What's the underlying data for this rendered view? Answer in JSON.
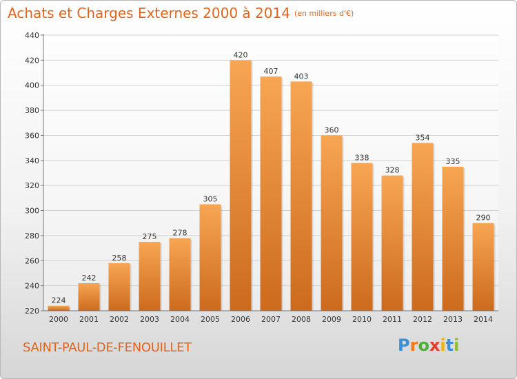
{
  "title": "Achats et Charges Externes 2000 à 2014",
  "unit": "(en milliers d'€)",
  "town": "SAINT-PAUL-DE-FENOUILLET",
  "logo": {
    "text": "Proxiti",
    "letters": [
      "P",
      "r",
      "o",
      "x",
      "i",
      "t",
      "i"
    ],
    "colors": [
      "#3a8fd6",
      "#f07a1a",
      "#4caf3a",
      "#e23b2b",
      "#f0b400",
      "#3a8fd6",
      "#8fbf2a"
    ]
  },
  "colors": {
    "accent": "#e0641c",
    "bar_top": "#f7a653",
    "bar_bottom": "#cc6a1e",
    "axis": "#777777",
    "grid": "#d2d2d2"
  },
  "chart_data": {
    "type": "bar",
    "categories": [
      "2000",
      "2001",
      "2002",
      "2003",
      "2004",
      "2005",
      "2006",
      "2007",
      "2008",
      "2009",
      "2010",
      "2011",
      "2012",
      "2013",
      "2014"
    ],
    "values": [
      224,
      242,
      258,
      275,
      278,
      305,
      420,
      407,
      403,
      360,
      338,
      328,
      354,
      335,
      290
    ],
    "ylim": [
      220,
      440
    ],
    "yticks": [
      220,
      240,
      260,
      280,
      300,
      320,
      340,
      360,
      380,
      400,
      420,
      440
    ],
    "grid": true,
    "data_labels": true
  }
}
